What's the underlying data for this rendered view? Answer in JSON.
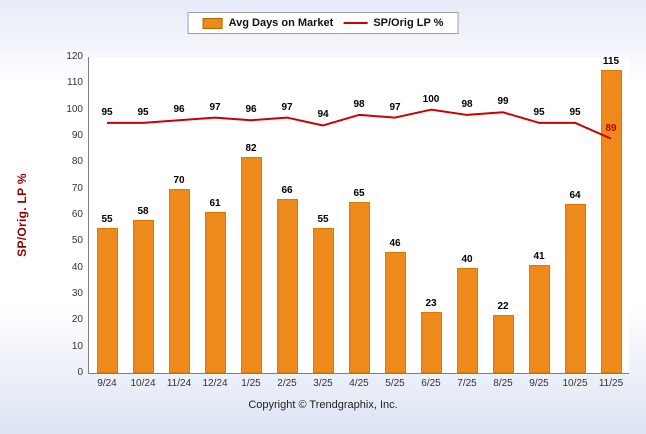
{
  "legend": {
    "bar_label": "Avg Days on Market",
    "line_label": "SP/Orig LP %"
  },
  "footer": {
    "copyright": "Copyright © Trendgraphix, Inc."
  },
  "chart_data": {
    "type": "bar+line",
    "title": "",
    "xlabel": "",
    "ylabel": "SP/Orig. LP %",
    "ylim": [
      0,
      120
    ],
    "ytick_step": 10,
    "grid": false,
    "legend_position": "top",
    "categories": [
      "9/24",
      "10/24",
      "11/24",
      "12/24",
      "1/25",
      "2/25",
      "3/25",
      "4/25",
      "5/25",
      "6/25",
      "7/25",
      "8/25",
      "9/25",
      "10/25",
      "11/25"
    ],
    "series": [
      {
        "name": "Avg Days on Market",
        "type": "bar",
        "color": "#EE8A1C",
        "values": [
          55,
          58,
          70,
          61,
          82,
          66,
          55,
          65,
          46,
          23,
          40,
          22,
          41,
          64,
          115
        ]
      },
      {
        "name": "SP/Orig LP %",
        "type": "line",
        "color": "#CC0000",
        "label_color": "#000000",
        "last_label_color": "#C00000",
        "values": [
          95,
          95,
          96,
          97,
          96,
          97,
          94,
          98,
          97,
          100,
          98,
          99,
          95,
          95,
          89
        ]
      }
    ]
  }
}
